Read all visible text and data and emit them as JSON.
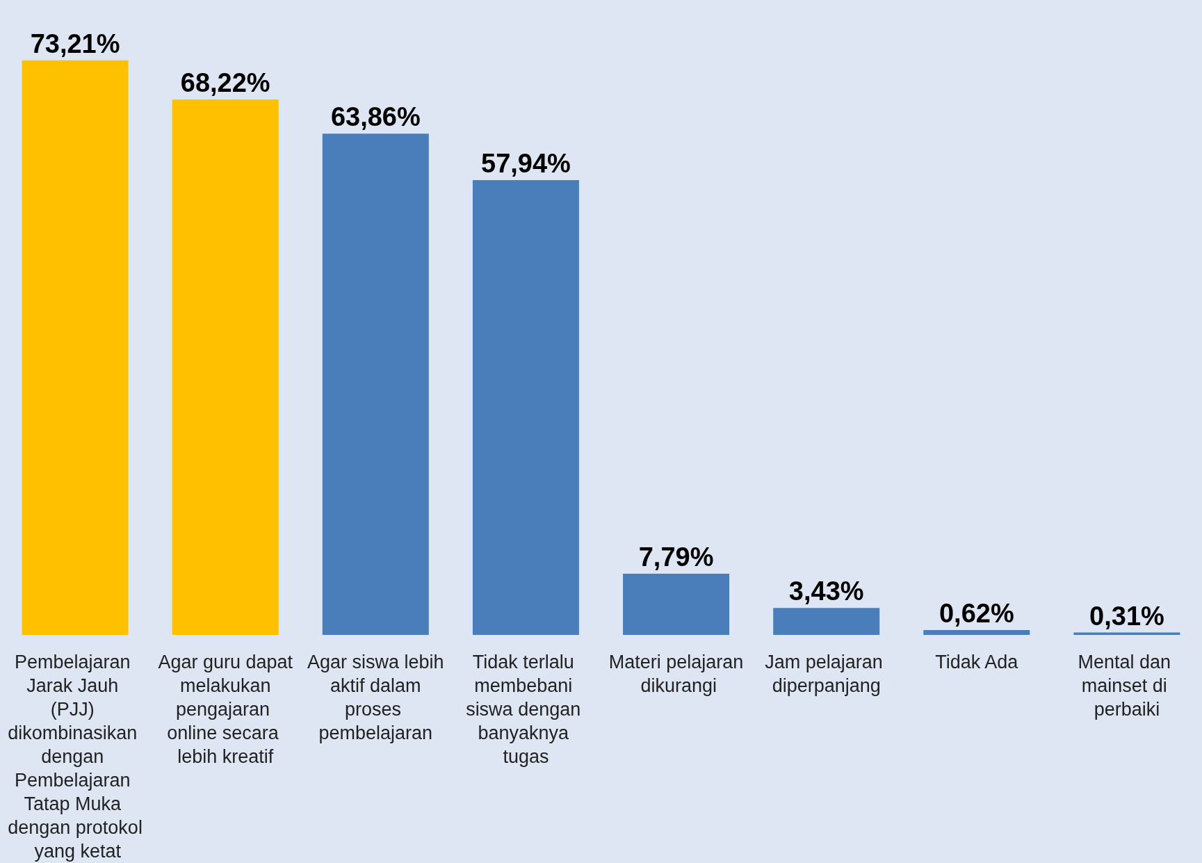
{
  "chart_data": {
    "type": "bar",
    "categories": [
      "Pembelajaran Jarak Jauh (PJJ) dikombinasikan dengan Pembelajaran Tatap Muka dengan protokol yang ketat",
      "Agar guru dapat melakukan pengajaran online secara lebih kreatif",
      "Agar siswa lebih aktif dalam proses pembelajaran",
      "Tidak terlalu membebani siswa dengan banyaknya tugas",
      "Materi pelajaran dikurangi",
      "Jam pelajaran diperpanjang",
      "Tidak Ada",
      "Mental dan mainset di perbaiki"
    ],
    "values": [
      73.21,
      68.22,
      63.86,
      57.94,
      7.79,
      3.43,
      0.62,
      0.31
    ],
    "value_labels": [
      "73,21%",
      "68,22%",
      "63,86%",
      "57,94%",
      "7,79%",
      "3,43%",
      "0,62%",
      "0,31%"
    ],
    "colors": [
      "#ffc000",
      "#ffc000",
      "#4a7ebb",
      "#4a7ebb",
      "#4a7ebb",
      "#4a7ebb",
      "#4a7ebb",
      "#4a7ebb"
    ],
    "grid": false,
    "tick_labels": "x"
  }
}
